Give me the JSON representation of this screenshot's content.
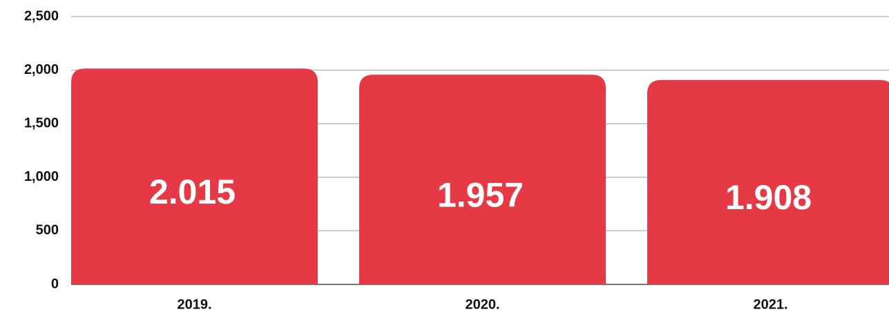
{
  "chart_data": {
    "type": "bar",
    "categories": [
      "2019.",
      "2020.",
      "2021."
    ],
    "values": [
      2015,
      1957,
      1908
    ],
    "value_labels": [
      "2.015",
      "1.957",
      "1.908"
    ],
    "color": "#e63946",
    "ylim": [
      0,
      2500
    ],
    "yticks": [
      0,
      500,
      {
        "value": 1000,
        "label": "1,000"
      },
      {
        "value": 1500,
        "label": "1,500"
      },
      {
        "value": 2000,
        "label": "2,000"
      },
      {
        "value": 2500,
        "label": "2,500"
      }
    ],
    "grid": true
  }
}
